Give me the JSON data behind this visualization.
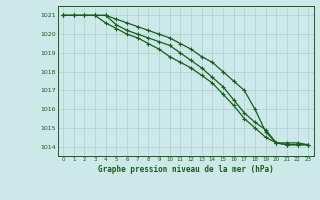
{
  "title": "Graphe pression niveau de la mer (hPa)",
  "xlim": [
    -0.5,
    23.5
  ],
  "ylim": [
    1013.5,
    1021.5
  ],
  "yticks": [
    1014,
    1015,
    1016,
    1017,
    1018,
    1019,
    1020,
    1021
  ],
  "xticks": [
    0,
    1,
    2,
    3,
    4,
    5,
    6,
    7,
    8,
    9,
    10,
    11,
    12,
    13,
    14,
    15,
    16,
    17,
    18,
    19,
    20,
    21,
    22,
    23
  ],
  "background_color": "#cce8e8",
  "grid_color": "#aad0d0",
  "line_color": "#1a5c1a",
  "series": [
    [
      1021.0,
      1021.0,
      1021.0,
      1021.0,
      1021.0,
      1020.8,
      1020.6,
      1020.4,
      1020.2,
      1020.0,
      1019.8,
      1019.5,
      1019.2,
      1018.8,
      1018.5,
      1018.0,
      1017.5,
      1017.0,
      1016.0,
      1014.8,
      1014.2,
      1014.1,
      1014.1,
      1014.1
    ],
    [
      1021.0,
      1021.0,
      1021.0,
      1021.0,
      1021.0,
      1020.5,
      1020.2,
      1020.0,
      1019.8,
      1019.6,
      1019.4,
      1019.0,
      1018.6,
      1018.2,
      1017.7,
      1017.2,
      1016.5,
      1015.8,
      1015.3,
      1014.9,
      1014.2,
      1014.2,
      1014.2,
      1014.1
    ],
    [
      1021.0,
      1021.0,
      1021.0,
      1021.0,
      1020.6,
      1020.3,
      1020.0,
      1019.8,
      1019.5,
      1019.2,
      1018.8,
      1018.5,
      1018.2,
      1017.8,
      1017.4,
      1016.8,
      1016.2,
      1015.5,
      1015.0,
      1014.5,
      1014.2,
      1014.1,
      1014.1,
      1014.1
    ]
  ],
  "figsize": [
    3.2,
    2.0
  ],
  "dpi": 100
}
